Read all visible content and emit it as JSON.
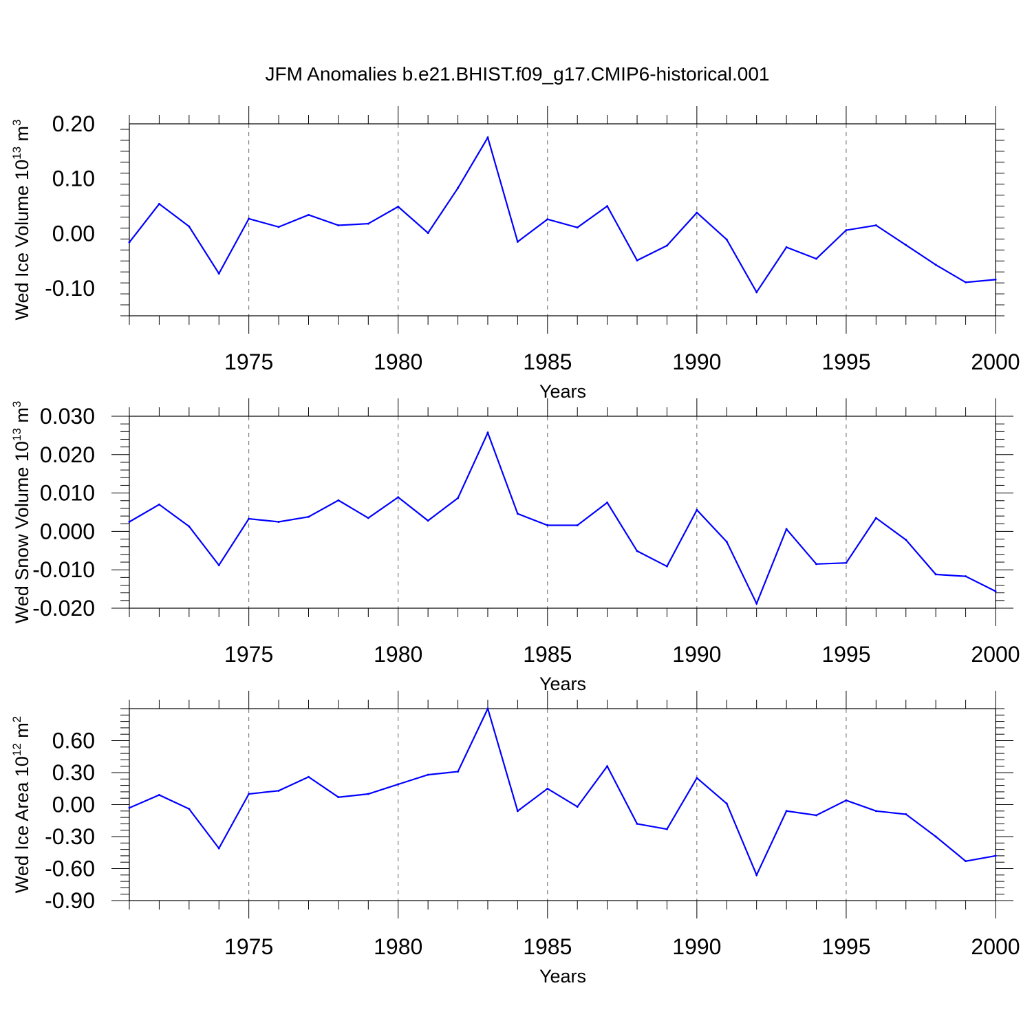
{
  "title": "JFM Anomalies b.e21.BHIST.f09_g17.CMIP6-historical.001",
  "colors": {
    "series": "#0000ff",
    "axes": "#000000",
    "grid": "#808080"
  },
  "chart_data": [
    {
      "type": "line",
      "ylabel": {
        "text": "Wed Ice Volume 10",
        "exp": "13",
        "unit": " m",
        "unit_exp": "3"
      },
      "xlabel": "Years",
      "xlim": [
        1971,
        2000
      ],
      "ylim": [
        -0.15,
        0.2
      ],
      "yticks": [
        0.2,
        0.1,
        0.0,
        -0.1
      ],
      "ytick_labels": [
        "0.20",
        "0.10",
        "0.00",
        "-0.10"
      ],
      "xticks": [
        1975,
        1980,
        1985,
        1990,
        1995,
        2000
      ],
      "xtick_labels": [
        "1975",
        "1980",
        "1985",
        "1990",
        "1995",
        "2000"
      ],
      "grid": "dashed vertical at major x ticks",
      "x": [
        1971,
        1972,
        1973,
        1974,
        1975,
        1976,
        1977,
        1978,
        1979,
        1980,
        1981,
        1982,
        1983,
        1984,
        1985,
        1986,
        1987,
        1988,
        1989,
        1990,
        1991,
        1992,
        1993,
        1994,
        1995,
        1996,
        1997,
        1998,
        1999,
        2000
      ],
      "values": [
        -0.016,
        0.054,
        0.013,
        -0.073,
        0.027,
        0.012,
        0.034,
        0.015,
        0.018,
        0.049,
        0.001,
        0.083,
        0.175,
        -0.015,
        0.026,
        0.011,
        0.05,
        -0.049,
        -0.022,
        0.038,
        -0.011,
        -0.107,
        -0.025,
        -0.046,
        0.006,
        0.015,
        -0.021,
        -0.057,
        -0.089,
        -0.084
      ]
    },
    {
      "type": "line",
      "ylabel": {
        "text": "Wed Snow Volume 10",
        "exp": "13",
        "unit": " m",
        "unit_exp": "3"
      },
      "xlabel": "Years",
      "xlim": [
        1971,
        2000
      ],
      "ylim": [
        -0.02,
        0.03
      ],
      "yticks": [
        0.03,
        0.02,
        0.01,
        0.0,
        -0.01,
        -0.02
      ],
      "ytick_labels": [
        "0.030",
        "0.020",
        "0.010",
        "0.000",
        "-0.010",
        "-0.020"
      ],
      "xticks": [
        1975,
        1980,
        1985,
        1990,
        1995,
        2000
      ],
      "xtick_labels": [
        "1975",
        "1980",
        "1985",
        "1990",
        "1995",
        "2000"
      ],
      "grid": "dashed vertical at major x ticks",
      "x": [
        1971,
        1972,
        1973,
        1974,
        1975,
        1976,
        1977,
        1978,
        1979,
        1980,
        1981,
        1982,
        1983,
        1984,
        1985,
        1986,
        1987,
        1988,
        1989,
        1990,
        1991,
        1992,
        1993,
        1994,
        1995,
        1996,
        1997,
        1998,
        1999,
        2000
      ],
      "values": [
        0.0025,
        0.007,
        0.0013,
        -0.0088,
        0.0033,
        0.0025,
        0.0038,
        0.0081,
        0.0035,
        0.0089,
        0.0028,
        0.0087,
        0.0257,
        0.0046,
        0.0016,
        0.0016,
        0.0075,
        -0.0051,
        -0.0091,
        0.0056,
        -0.0027,
        -0.0188,
        0.0006,
        -0.0085,
        -0.0082,
        0.0035,
        -0.0022,
        -0.0112,
        -0.0117,
        -0.0156
      ]
    },
    {
      "type": "line",
      "ylabel": {
        "text": "Wed Ice Area 10",
        "exp": "12",
        "unit": " m",
        "unit_exp": "2"
      },
      "xlabel": "Years",
      "xlim": [
        1971,
        2000
      ],
      "ylim": [
        -0.9,
        0.9
      ],
      "yticks": [
        0.6,
        0.3,
        0.0,
        -0.3,
        -0.6,
        -0.9
      ],
      "ytick_labels": [
        "0.60",
        "0.30",
        "0.00",
        "-0.30",
        "-0.60",
        "-0.90"
      ],
      "xticks": [
        1975,
        1980,
        1985,
        1990,
        1995,
        2000
      ],
      "xtick_labels": [
        "1975",
        "1980",
        "1985",
        "1990",
        "1995",
        "2000"
      ],
      "grid": "dashed vertical at major x ticks",
      "x": [
        1971,
        1972,
        1973,
        1974,
        1975,
        1976,
        1977,
        1978,
        1979,
        1980,
        1981,
        1982,
        1983,
        1984,
        1985,
        1986,
        1987,
        1988,
        1989,
        1990,
        1991,
        1992,
        1993,
        1994,
        1995,
        1996,
        1997,
        1998,
        1999,
        2000
      ],
      "values": [
        -0.03,
        0.09,
        -0.04,
        -0.41,
        0.1,
        0.13,
        0.26,
        0.07,
        0.1,
        0.19,
        0.28,
        0.31,
        0.9,
        -0.06,
        0.15,
        -0.02,
        0.36,
        -0.18,
        -0.23,
        0.25,
        0.01,
        -0.66,
        -0.06,
        -0.1,
        0.04,
        -0.06,
        -0.09,
        -0.3,
        -0.53,
        -0.48
      ]
    }
  ]
}
